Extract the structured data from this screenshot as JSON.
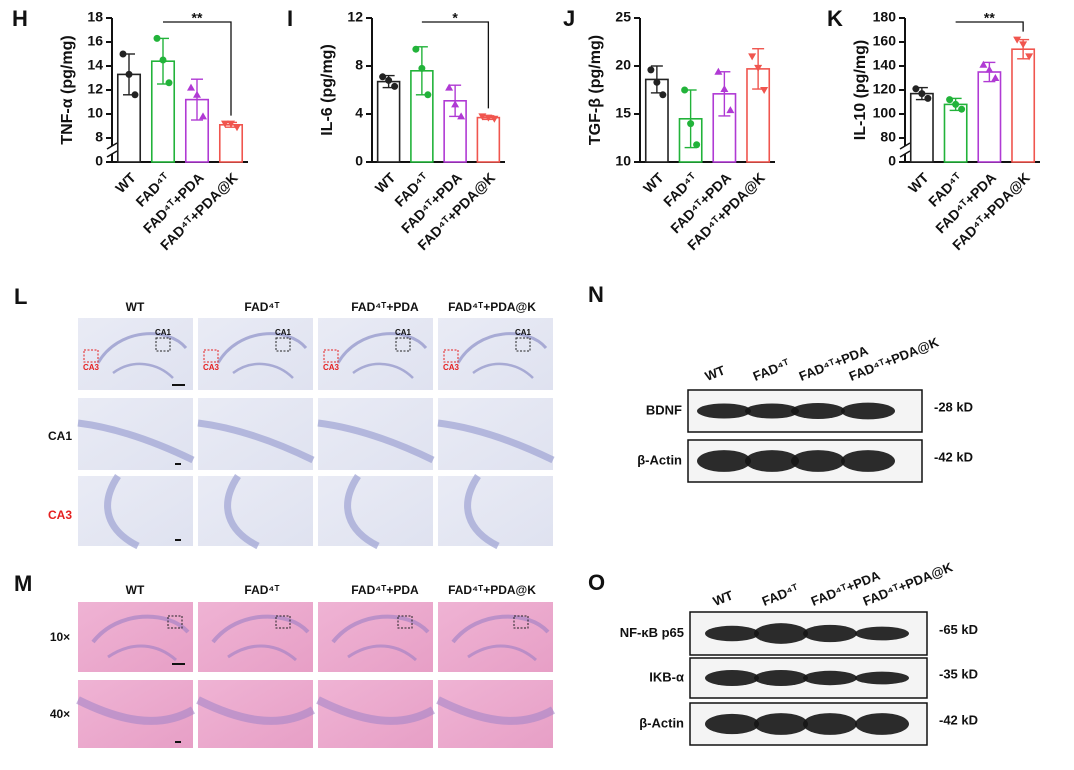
{
  "chart_data": [
    {
      "panel": "H",
      "type": "bar",
      "ylabel": "TNF-α (pg/mg)",
      "categories": [
        "WT",
        "FAD⁴ᵀ",
        "FAD⁴ᵀ+PDA",
        "FAD⁴ᵀ+PDA@K"
      ],
      "values": [
        13.3,
        14.4,
        11.2,
        9.1
      ],
      "errors": [
        1.7,
        1.9,
        1.7,
        0.2
      ],
      "points": [
        [
          15.0,
          13.3,
          11.6
        ],
        [
          16.3,
          14.5,
          12.6
        ],
        [
          12.2,
          11.6,
          9.8
        ],
        [
          9.2,
          9.2,
          8.9
        ]
      ],
      "colors": [
        "#222222",
        "#22b33a",
        "#b03ad4",
        "#f0554e"
      ],
      "ylim": [
        0,
        18
      ],
      "yticks": [
        0,
        8,
        10,
        12,
        14,
        16,
        18
      ],
      "ybreak": [
        0,
        8
      ],
      "significance": {
        "label": "**",
        "from": 1,
        "to": 3
      }
    },
    {
      "panel": "I",
      "type": "bar",
      "ylabel": "IL-6 (pg/mg)",
      "categories": [
        "WT",
        "FAD⁴ᵀ",
        "FAD⁴ᵀ+PDA",
        "FAD⁴ᵀ+PDA@K"
      ],
      "values": [
        6.7,
        7.6,
        5.1,
        3.7
      ],
      "errors": [
        0.5,
        2.0,
        1.3,
        0.15
      ],
      "points": [
        [
          7.1,
          6.8,
          6.3
        ],
        [
          9.4,
          7.8,
          5.6
        ],
        [
          6.2,
          4.8,
          3.8
        ],
        [
          3.8,
          3.7,
          3.6
        ]
      ],
      "colors": [
        "#222222",
        "#22b33a",
        "#b03ad4",
        "#f0554e"
      ],
      "ylim": [
        0,
        12
      ],
      "yticks": [
        0,
        4,
        8,
        12
      ],
      "significance": {
        "label": "*",
        "from": 1,
        "to": 3
      }
    },
    {
      "panel": "J",
      "type": "bar",
      "ylabel": "TGF-β (pg/mg)",
      "categories": [
        "WT",
        "FAD⁴ᵀ",
        "FAD⁴ᵀ+PDA",
        "FAD⁴ᵀ+PDA@K"
      ],
      "values": [
        18.6,
        14.5,
        17.1,
        19.7
      ],
      "errors": [
        1.4,
        3.0,
        2.3,
        2.1
      ],
      "points": [
        [
          19.6,
          18.3,
          17.0
        ],
        [
          17.5,
          14.0,
          11.8
        ],
        [
          19.4,
          17.6,
          15.4
        ],
        [
          21.0,
          19.8,
          17.5
        ]
      ],
      "colors": [
        "#222222",
        "#22b33a",
        "#b03ad4",
        "#f0554e"
      ],
      "ylim": [
        10,
        25
      ],
      "yticks": [
        10,
        15,
        20,
        25
      ]
    },
    {
      "panel": "K",
      "type": "bar",
      "ylabel": "IL-10 (pg/mg)",
      "categories": [
        "WT",
        "FAD⁴ᵀ",
        "FAD⁴ᵀ+PDA",
        "FAD⁴ᵀ+PDA@K"
      ],
      "values": [
        117,
        108,
        135,
        154
      ],
      "errors": [
        5,
        5,
        8,
        8
      ],
      "points": [
        [
          121,
          117,
          113
        ],
        [
          112,
          108,
          104
        ],
        [
          141,
          137,
          130
        ],
        [
          162,
          158,
          148
        ]
      ],
      "colors": [
        "#222222",
        "#22b33a",
        "#b03ad4",
        "#f0554e"
      ],
      "ylim": [
        0,
        180
      ],
      "yticks": [
        0,
        80,
        100,
        120,
        140,
        160,
        180
      ],
      "ybreak": [
        0,
        80
      ],
      "significance": {
        "label": "**",
        "from": 1,
        "to": 3
      }
    }
  ],
  "panels": {
    "L": {
      "letter": "L",
      "columns": [
        "WT",
        "FAD⁴ᵀ",
        "FAD⁴ᵀ+PDA",
        "FAD⁴ᵀ+PDA@K"
      ],
      "rows": [
        "",
        "CA1",
        "CA3"
      ],
      "region_labels": [
        "CA1",
        "CA3"
      ]
    },
    "M": {
      "letter": "M",
      "columns": [
        "WT",
        "FAD⁴ᵀ",
        "FAD⁴ᵀ+PDA",
        "FAD⁴ᵀ+PDA@K"
      ],
      "rows": [
        "10×",
        "40×"
      ]
    },
    "N": {
      "letter": "N",
      "lanes": [
        "WT",
        "FAD⁴ᵀ",
        "FAD⁴ᵀ+PDA",
        "FAD⁴ᵀ+PDA@K"
      ],
      "proteins": [
        "BDNF",
        "β-Actin"
      ],
      "sizes": [
        "-28 kD",
        "-42 kD"
      ]
    },
    "O": {
      "letter": "O",
      "lanes": [
        "WT",
        "FAD⁴ᵀ",
        "FAD⁴ᵀ+PDA",
        "FAD⁴ᵀ+PDA@K"
      ],
      "proteins": [
        "NF-κB p65",
        "IKB-α",
        "β-Actin"
      ],
      "sizes": [
        "-65 kD",
        "-35 kD",
        "-42 kD"
      ]
    }
  }
}
